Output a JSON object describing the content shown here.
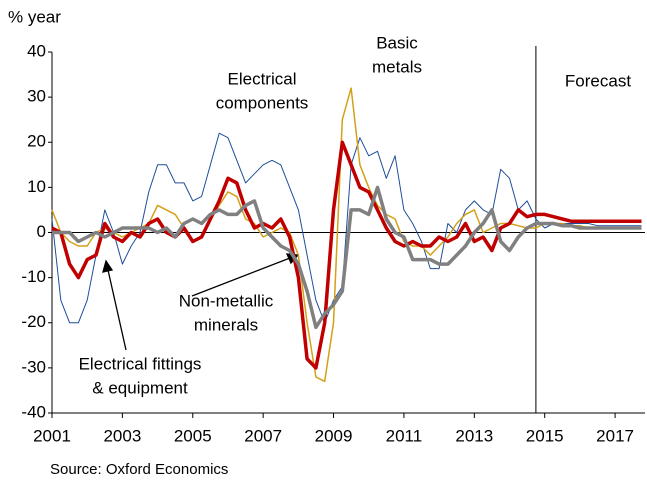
{
  "chart_data": {
    "type": "line",
    "y_label": "% year",
    "source": "Source: Oxford Economics",
    "annotations": {
      "electrical_components": [
        "Electrical",
        "components"
      ],
      "basic_metals": [
        "Basic",
        "metals"
      ],
      "non_metallic": [
        "Non-metallic",
        "minerals"
      ],
      "fittings": [
        "Electrical fittings",
        "& equipment"
      ],
      "forecast": "Forecast"
    },
    "forecast_start": 2014.75,
    "x": [
      2001,
      2001.25,
      2001.5,
      2001.75,
      2002,
      2002.25,
      2002.5,
      2002.75,
      2003,
      2003.25,
      2003.5,
      2003.75,
      2004,
      2004.25,
      2004.5,
      2004.75,
      2005,
      2005.25,
      2005.5,
      2005.75,
      2006,
      2006.25,
      2006.5,
      2006.75,
      2007,
      2007.25,
      2007.5,
      2007.75,
      2008,
      2008.25,
      2008.5,
      2008.75,
      2009,
      2009.25,
      2009.5,
      2009.75,
      2010,
      2010.25,
      2010.5,
      2010.75,
      2011,
      2011.25,
      2011.5,
      2011.75,
      2012,
      2012.25,
      2012.5,
      2012.75,
      2013,
      2013.25,
      2013.5,
      2013.75,
      2014,
      2014.25,
      2014.5,
      2014.75,
      2015,
      2015.25,
      2015.5,
      2015.75,
      2016,
      2016.25,
      2016.5,
      2016.75,
      2017,
      2017.25,
      2017.5,
      2017.75
    ],
    "series": [
      {
        "name": "Electrical components",
        "color": "#1f4e9a",
        "width": 1,
        "values": [
          3,
          -15,
          -20,
          -20,
          -15,
          -5,
          5,
          0,
          -7,
          -3,
          0,
          9,
          15,
          15,
          11,
          11,
          7,
          8,
          15,
          22,
          21,
          16,
          11,
          13,
          15,
          16,
          15,
          10,
          5,
          -5,
          -15,
          -20,
          -15,
          -12,
          15,
          21,
          17,
          18,
          12,
          17,
          5,
          2,
          -2,
          -8,
          -8,
          2,
          0,
          5,
          7,
          5,
          4,
          14,
          12,
          5,
          7,
          3,
          1,
          2,
          2,
          2,
          2,
          2,
          1.5,
          1.5,
          1.5,
          1.5,
          1.5,
          1.5
        ]
      },
      {
        "name": "Basic metals",
        "color": "#d4a017",
        "width": 1.5,
        "values": [
          5,
          0,
          -2,
          -3,
          -3,
          0,
          1,
          0,
          -1,
          0,
          1,
          2,
          6,
          5,
          4,
          1,
          -2,
          -1,
          3,
          6,
          9,
          8,
          3,
          2,
          -1,
          0,
          1,
          0,
          -5,
          -20,
          -32,
          -33,
          -20,
          25,
          32,
          15,
          10,
          6,
          4,
          3,
          -2,
          -3,
          -3,
          -5,
          -3,
          -1,
          2,
          4,
          5,
          0,
          1,
          2,
          2,
          1.5,
          1,
          1,
          2,
          2,
          2,
          1.5,
          1.5,
          1,
          1,
          1,
          1,
          1,
          1,
          1
        ]
      },
      {
        "name": "Electrical fittings & equipment",
        "color": "#c00000",
        "width": 3.5,
        "values": [
          1,
          0,
          -7,
          -10,
          -6,
          -5,
          2,
          -1,
          -2,
          0,
          -1,
          2,
          3,
          0,
          -1,
          1,
          -2,
          -1,
          3,
          7,
          12,
          11,
          5,
          1,
          2,
          1,
          3,
          -1,
          -10,
          -28,
          -30,
          -20,
          5,
          20,
          15,
          10,
          9,
          5,
          1,
          -2,
          -3,
          -2,
          -3,
          -3,
          -1,
          -2,
          -1,
          2,
          -2,
          -1,
          -4,
          1,
          2,
          5,
          3.5,
          4,
          4,
          3.5,
          3,
          2.5,
          2.5,
          2.5,
          2.5,
          2.5,
          2.5,
          2.5,
          2.5,
          2.5
        ]
      },
      {
        "name": "Non-metallic minerals",
        "color": "#808080",
        "width": 3.5,
        "values": [
          0,
          0,
          0,
          -2,
          -1,
          0,
          -1,
          0,
          1,
          1,
          1,
          1,
          0,
          1,
          -1,
          2,
          3,
          2,
          4,
          5,
          4,
          4,
          6,
          7,
          1,
          -1,
          -3,
          -4,
          -7,
          -13,
          -21,
          -18,
          -16,
          -13,
          5,
          5,
          4,
          10,
          3,
          0,
          -1,
          -6,
          -6,
          -6,
          -7,
          -7,
          -5,
          -3,
          0,
          2,
          5,
          -2,
          -4,
          -1,
          1,
          2,
          2,
          2,
          1.5,
          1.5,
          1,
          1,
          1,
          1,
          1,
          1,
          1,
          1
        ]
      }
    ],
    "xlim": [
      2001,
      2017.85
    ],
    "xticks": [
      2001,
      2003,
      2005,
      2007,
      2009,
      2011,
      2013,
      2015,
      2017
    ],
    "ylim": [
      -40,
      40
    ],
    "yticks": [
      -40,
      -30,
      -20,
      -10,
      0,
      10,
      20,
      30,
      40
    ]
  }
}
